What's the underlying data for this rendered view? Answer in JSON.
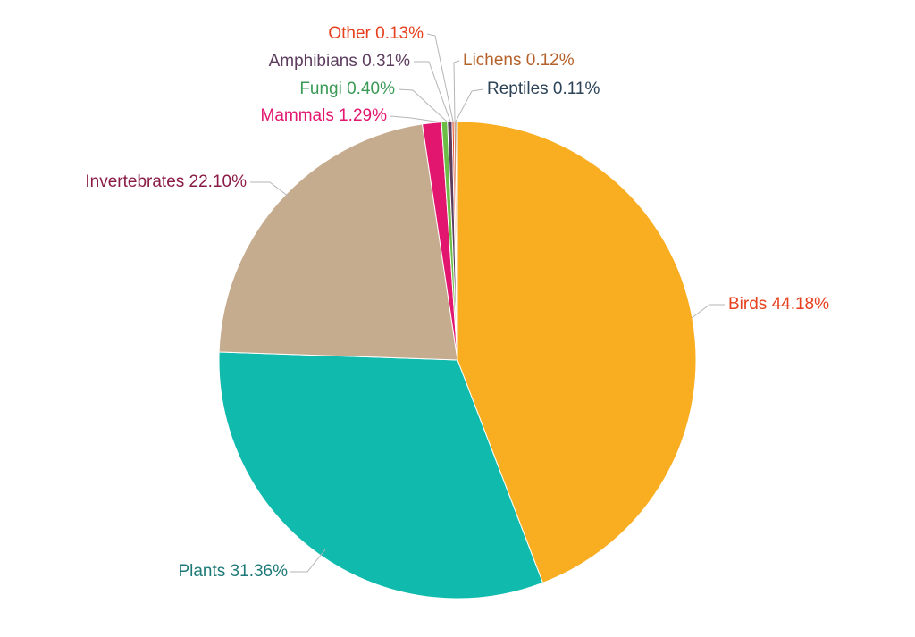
{
  "chart_data": {
    "type": "pie",
    "title": "",
    "start_angle_deg": 90,
    "direction": "clockwise",
    "slices": [
      {
        "label": "Birds",
        "value": 44.18,
        "display": "Birds 44.18%",
        "color": "#F9AE21",
        "text_color": "#E6401E"
      },
      {
        "label": "Plants",
        "value": 31.36,
        "display": "Plants 31.36%",
        "color": "#10BAAD",
        "text_color": "#1E7A78"
      },
      {
        "label": "Invertebrates",
        "value": 22.1,
        "display": "Invertebrates 22.10%",
        "color": "#C6AC8E",
        "text_color": "#8A1B46"
      },
      {
        "label": "Mammals",
        "value": 1.29,
        "display": "Mammals 1.29%",
        "color": "#E2156F",
        "text_color": "#E2156F"
      },
      {
        "label": "Fungi",
        "value": 0.4,
        "display": "Fungi 0.40%",
        "color": "#6BBD45",
        "text_color": "#3A9A56"
      },
      {
        "label": "Amphibians",
        "value": 0.31,
        "display": "Amphibians 0.31%",
        "color": "#5C3D5E",
        "text_color": "#5C3D5E"
      },
      {
        "label": "Other",
        "value": 0.13,
        "display": "Other 0.13%",
        "color": "#E6401E",
        "text_color": "#E6401E"
      },
      {
        "label": "Reptiles",
        "value": 0.11,
        "display": "Reptiles 0.11%",
        "color": "#2B4257",
        "text_color": "#2B4257"
      },
      {
        "label": "Lichens",
        "value": 0.12,
        "display": "Lichens 0.12%",
        "color": "#B5612A",
        "text_color": "#B5612A"
      }
    ]
  }
}
